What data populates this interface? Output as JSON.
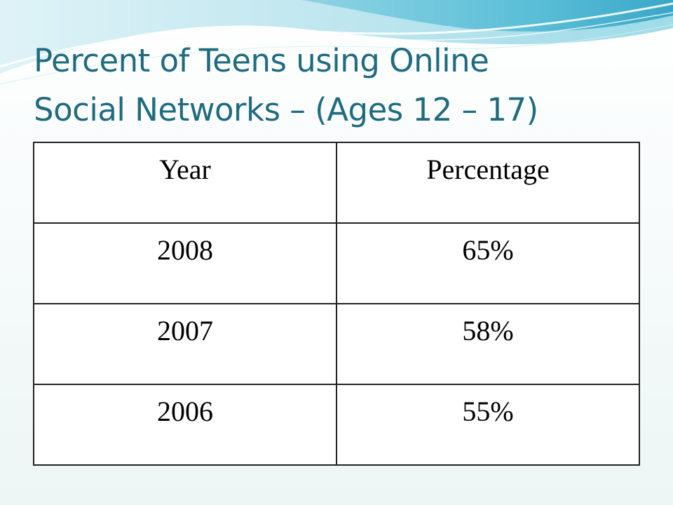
{
  "slide": {
    "title_lines": [
      "Percent of Teens using Online",
      "Social Networks – (Ages 12 – 17)"
    ],
    "colors": {
      "title": "#1f6b80",
      "wave_light": "#bfe6ef",
      "wave_mid": "#7fcfe0",
      "wave_dark": "#3aa8c8"
    }
  },
  "table": {
    "headers": [
      "Year",
      "Percentage"
    ],
    "rows": [
      [
        "2008",
        "65%"
      ],
      [
        "2007",
        "58%"
      ],
      [
        "2006",
        "55%"
      ]
    ]
  }
}
